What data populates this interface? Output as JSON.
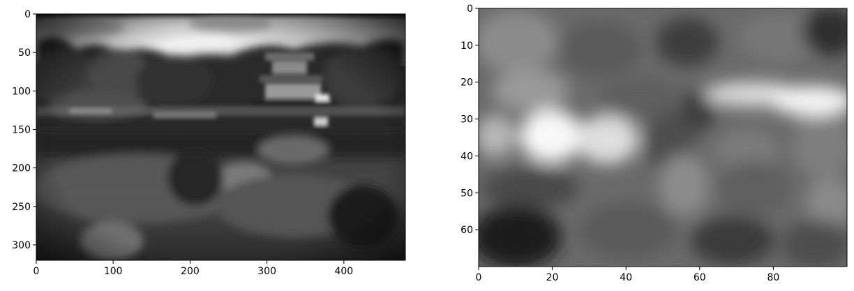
{
  "figure": {
    "panels": [
      {
        "name": "left-image-panel",
        "image_content": "grayscale blurred photo of a temple reflected in a pond with trees",
        "x_axis": {
          "range": [
            0,
            480
          ],
          "ticks": [
            {
              "value": 0,
              "label": "0"
            },
            {
              "value": 100,
              "label": "100"
            },
            {
              "value": 200,
              "label": "200"
            },
            {
              "value": 300,
              "label": "300"
            },
            {
              "value": 400,
              "label": "400"
            }
          ]
        },
        "y_axis": {
          "range": [
            0,
            320
          ],
          "inverted": true,
          "ticks": [
            {
              "value": 0,
              "label": "0"
            },
            {
              "value": 50,
              "label": "50"
            },
            {
              "value": 100,
              "label": "100"
            },
            {
              "value": 150,
              "label": "150"
            },
            {
              "value": 200,
              "label": "200"
            },
            {
              "value": 250,
              "label": "250"
            },
            {
              "value": 300,
              "label": "300"
            }
          ]
        }
      },
      {
        "name": "right-image-panel",
        "image_content": "grayscale low-resolution blurred pixel map with bright horizontal bands",
        "x_axis": {
          "range": [
            0,
            100
          ],
          "ticks": [
            {
              "value": 0,
              "label": "0"
            },
            {
              "value": 20,
              "label": "20"
            },
            {
              "value": 40,
              "label": "40"
            },
            {
              "value": 60,
              "label": "60"
            },
            {
              "value": 80,
              "label": "80"
            }
          ]
        },
        "y_axis": {
          "range": [
            0,
            70
          ],
          "inverted": true,
          "ticks": [
            {
              "value": 0,
              "label": "0"
            },
            {
              "value": 10,
              "label": "10"
            },
            {
              "value": 20,
              "label": "20"
            },
            {
              "value": 30,
              "label": "30"
            },
            {
              "value": 40,
              "label": "40"
            },
            {
              "value": 50,
              "label": "50"
            },
            {
              "value": 60,
              "label": "60"
            }
          ]
        }
      }
    ]
  }
}
